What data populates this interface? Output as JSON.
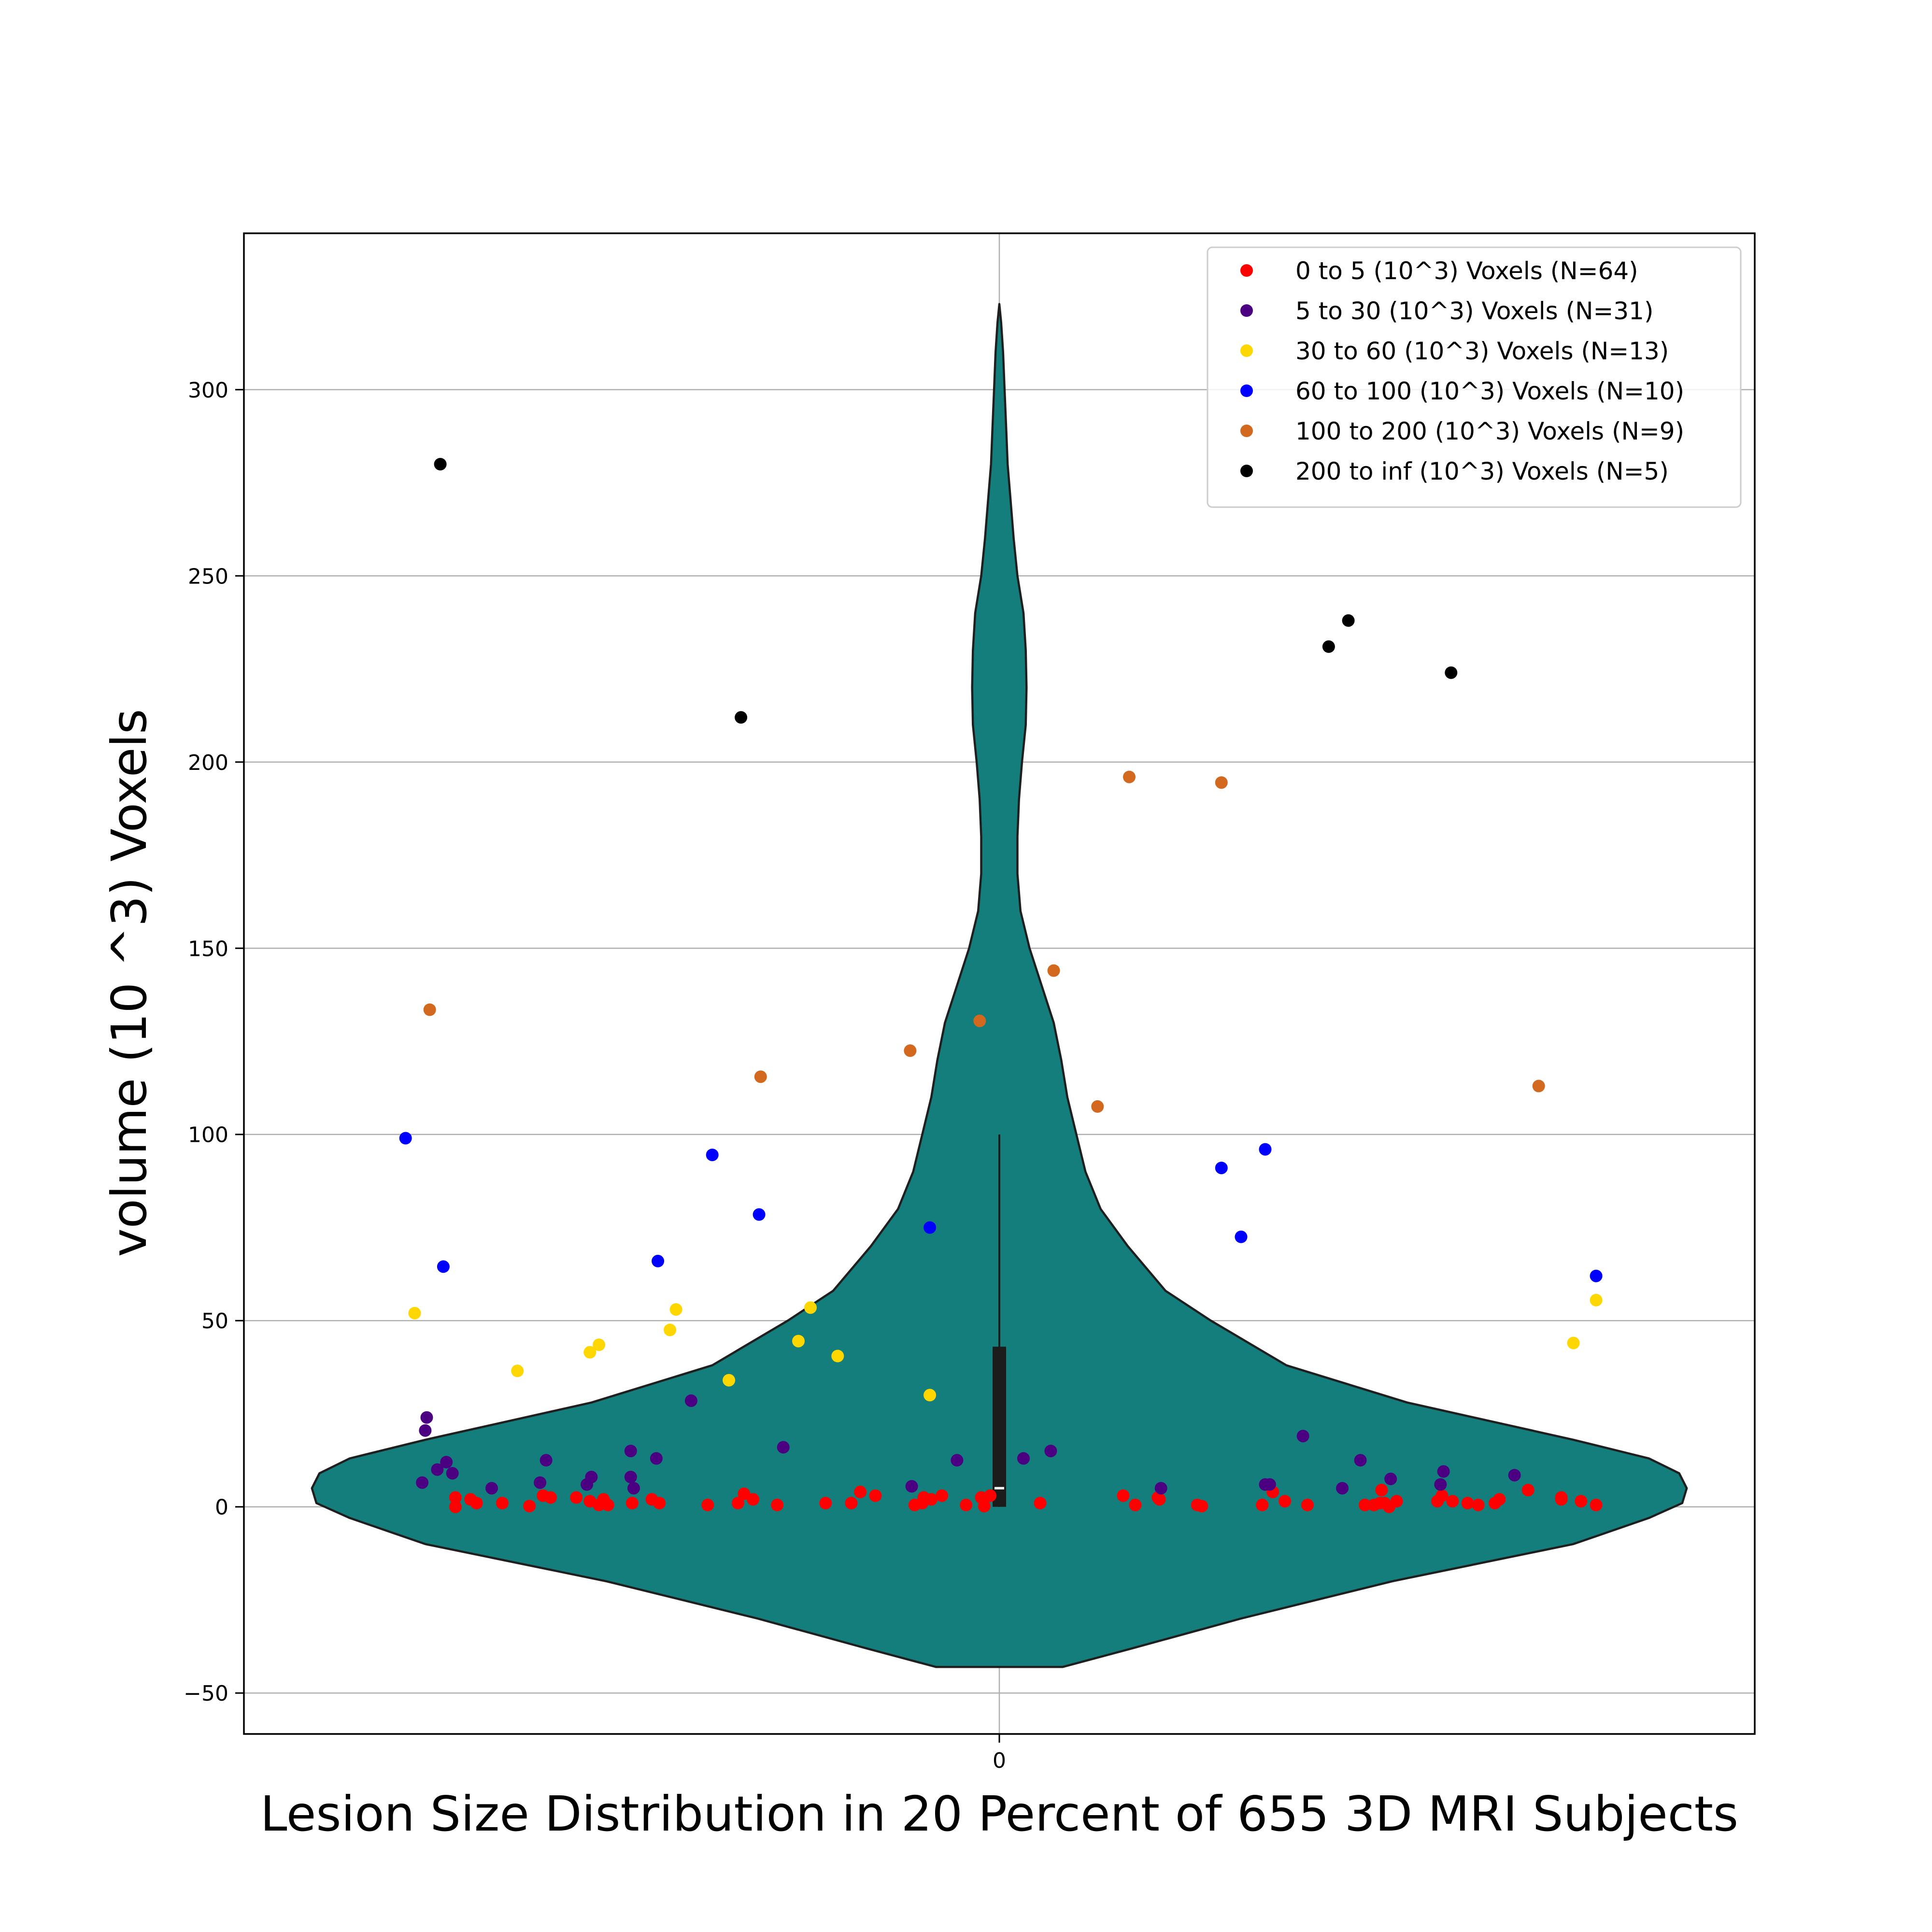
{
  "chart_data": {
    "type": "scatter",
    "xlabel": "Lesion Size Distribution in 20 Percent of 655 3D MRI Subjects",
    "ylabel": "volume (10 ^3) Voxels",
    "ylim": [
      -61,
      342
    ],
    "xlim": [
      -0.5,
      0.5
    ],
    "x_ticks": [
      "0"
    ],
    "y_ticks": [
      -50,
      0,
      50,
      100,
      150,
      200,
      250,
      300
    ],
    "grid": true,
    "legend_position": "top-right",
    "violin": {
      "color": "#137e7c",
      "edge_color": "#1f1f1f",
      "extent": [
        -43,
        323
      ],
      "box": {
        "q1": 0,
        "median": 5,
        "q3": 43,
        "whisker_low": 0,
        "whisker_high": 100
      },
      "profile": [
        [
          -43,
          0.042
        ],
        [
          -38,
          0.088
        ],
        [
          -30,
          0.16
        ],
        [
          -20,
          0.26
        ],
        [
          -10,
          0.38
        ],
        [
          -3,
          0.43
        ],
        [
          1,
          0.452
        ],
        [
          5,
          0.455
        ],
        [
          9,
          0.45
        ],
        [
          13,
          0.43
        ],
        [
          18,
          0.38
        ],
        [
          28,
          0.27
        ],
        [
          38,
          0.19
        ],
        [
          50,
          0.14
        ],
        [
          58,
          0.11
        ],
        [
          70,
          0.085
        ],
        [
          80,
          0.067
        ],
        [
          90,
          0.057
        ],
        [
          100,
          0.051
        ],
        [
          110,
          0.045
        ],
        [
          120,
          0.041
        ],
        [
          130,
          0.036
        ],
        [
          140,
          0.028
        ],
        [
          150,
          0.02
        ],
        [
          160,
          0.014
        ],
        [
          170,
          0.012
        ],
        [
          180,
          0.012
        ],
        [
          190,
          0.013
        ],
        [
          200,
          0.015
        ],
        [
          210,
          0.0175
        ],
        [
          220,
          0.018
        ],
        [
          230,
          0.0175
        ],
        [
          240,
          0.016
        ],
        [
          250,
          0.012
        ],
        [
          260,
          0.0095
        ],
        [
          270,
          0.0075
        ],
        [
          280,
          0.0055
        ],
        [
          290,
          0.0045
        ],
        [
          300,
          0.0035
        ],
        [
          310,
          0.0025
        ],
        [
          318,
          0.0012
        ],
        [
          323,
          0.0
        ]
      ]
    },
    "series": [
      {
        "name": "0 to 5 (10^3) Voxels (N=64)",
        "color": "#ff0000",
        "points": [
          [
            -0.36,
            2.5
          ],
          [
            -0.36,
            0
          ],
          [
            -0.346,
            1
          ],
          [
            -0.329,
            1
          ],
          [
            -0.311,
            0.2
          ],
          [
            -0.302,
            3
          ],
          [
            -0.297,
            2.5
          ],
          [
            -0.28,
            2.5
          ],
          [
            -0.271,
            1.5
          ],
          [
            -0.265,
            0.5
          ],
          [
            -0.259,
            0.5
          ],
          [
            -0.262,
            2
          ],
          [
            -0.243,
            1
          ],
          [
            -0.225,
            1
          ],
          [
            -0.193,
            0.5
          ],
          [
            -0.173,
            1
          ],
          [
            -0.169,
            3.5
          ],
          [
            -0.163,
            2
          ],
          [
            -0.147,
            0.5
          ],
          [
            -0.115,
            1
          ],
          [
            -0.098,
            1
          ],
          [
            -0.092,
            4
          ],
          [
            -0.082,
            3
          ],
          [
            -0.056,
            0.5
          ],
          [
            -0.051,
            1
          ],
          [
            -0.045,
            2
          ],
          [
            -0.038,
            3
          ],
          [
            -0.022,
            0.5
          ],
          [
            -0.012,
            2.5
          ],
          [
            -0.01,
            0.2
          ],
          [
            -0.006,
            3
          ],
          [
            0.027,
            1
          ],
          [
            0.082,
            3
          ],
          [
            0.09,
            0.5
          ],
          [
            0.106,
            2
          ],
          [
            0.131,
            0.5
          ],
          [
            0.134,
            0.2
          ],
          [
            0.174,
            0.5
          ],
          [
            0.181,
            4
          ],
          [
            0.189,
            1.5
          ],
          [
            0.204,
            0.5
          ],
          [
            0.242,
            0.5
          ],
          [
            0.248,
            0.5
          ],
          [
            0.252,
            1
          ],
          [
            0.253,
            4.5
          ],
          [
            0.258,
            0
          ],
          [
            0.263,
            1.5
          ],
          [
            0.29,
            1.5
          ],
          [
            0.293,
            3
          ],
          [
            0.3,
            1.5
          ],
          [
            0.31,
            1
          ],
          [
            0.317,
            0.5
          ],
          [
            0.328,
            1
          ],
          [
            0.331,
            2
          ],
          [
            0.35,
            4.5
          ],
          [
            0.372,
            2.5
          ],
          [
            0.385,
            1.5
          ],
          [
            0.395,
            0.5
          ],
          [
            -0.35,
            2
          ],
          [
            -0.23,
            2
          ],
          [
            -0.05,
            2.5
          ],
          [
            0.105,
            2.5
          ],
          [
            0.255,
            1
          ],
          [
            0.372,
            2
          ]
        ]
      },
      {
        "name": "5 to 30 (10^3) Voxels (N=31)",
        "color": "#4b0082",
        "points": [
          [
            -0.382,
            6.5
          ],
          [
            -0.38,
            20.5
          ],
          [
            -0.379,
            24
          ],
          [
            -0.372,
            10
          ],
          [
            -0.366,
            12
          ],
          [
            -0.362,
            9
          ],
          [
            -0.336,
            5
          ],
          [
            -0.304,
            6.5
          ],
          [
            -0.3,
            12.5
          ],
          [
            -0.273,
            6
          ],
          [
            -0.27,
            8
          ],
          [
            -0.244,
            15
          ],
          [
            -0.244,
            8
          ],
          [
            -0.242,
            5
          ],
          [
            -0.227,
            13
          ],
          [
            -0.204,
            28.5
          ],
          [
            -0.143,
            16
          ],
          [
            -0.058,
            5.5
          ],
          [
            -0.028,
            12.5
          ],
          [
            0.016,
            13
          ],
          [
            0.034,
            15
          ],
          [
            0.107,
            5
          ],
          [
            0.176,
            6
          ],
          [
            0.179,
            6
          ],
          [
            0.201,
            19
          ],
          [
            0.227,
            5
          ],
          [
            0.239,
            12.5
          ],
          [
            0.259,
            7.5
          ],
          [
            0.292,
            6
          ],
          [
            0.294,
            9.5
          ],
          [
            0.341,
            8.5
          ]
        ]
      },
      {
        "name": "30 to 60 (10^3) Voxels (N=13)",
        "color": "#ffd700",
        "points": [
          [
            -0.387,
            52
          ],
          [
            -0.319,
            36.5
          ],
          [
            -0.271,
            41.5
          ],
          [
            -0.265,
            43.5
          ],
          [
            -0.218,
            47.5
          ],
          [
            -0.214,
            53
          ],
          [
            -0.179,
            34
          ],
          [
            -0.133,
            44.5
          ],
          [
            -0.125,
            53.5
          ],
          [
            -0.107,
            40.5
          ],
          [
            -0.046,
            30
          ],
          [
            0.38,
            44
          ],
          [
            0.395,
            55.5
          ]
        ]
      },
      {
        "name": "60 to 100 (10^3) Voxels (N=10)",
        "color": "#0000ff",
        "points": [
          [
            -0.393,
            99
          ],
          [
            -0.368,
            64.5
          ],
          [
            -0.226,
            66
          ],
          [
            -0.19,
            94.5
          ],
          [
            -0.159,
            78.5
          ],
          [
            -0.046,
            75
          ],
          [
            0.147,
            91
          ],
          [
            0.16,
            72.5
          ],
          [
            0.176,
            96
          ],
          [
            0.395,
            62
          ]
        ]
      },
      {
        "name": "100 to 200 (10^3) Voxels (N=9)",
        "color": "#d2691e",
        "points": [
          [
            -0.377,
            133.5
          ],
          [
            -0.158,
            115.5
          ],
          [
            -0.059,
            122.5
          ],
          [
            -0.013,
            130.5
          ],
          [
            0.036,
            144
          ],
          [
            0.065,
            107.5
          ],
          [
            0.086,
            196
          ],
          [
            0.147,
            194.5
          ],
          [
            0.357,
            113
          ]
        ]
      },
      {
        "name": "200 to inf (10^3) Voxels (N=5)",
        "color": "#000000",
        "points": [
          [
            -0.37,
            280
          ],
          [
            -0.171,
            212
          ],
          [
            0.218,
            231
          ],
          [
            0.231,
            238
          ],
          [
            0.299,
            224
          ]
        ]
      }
    ]
  }
}
